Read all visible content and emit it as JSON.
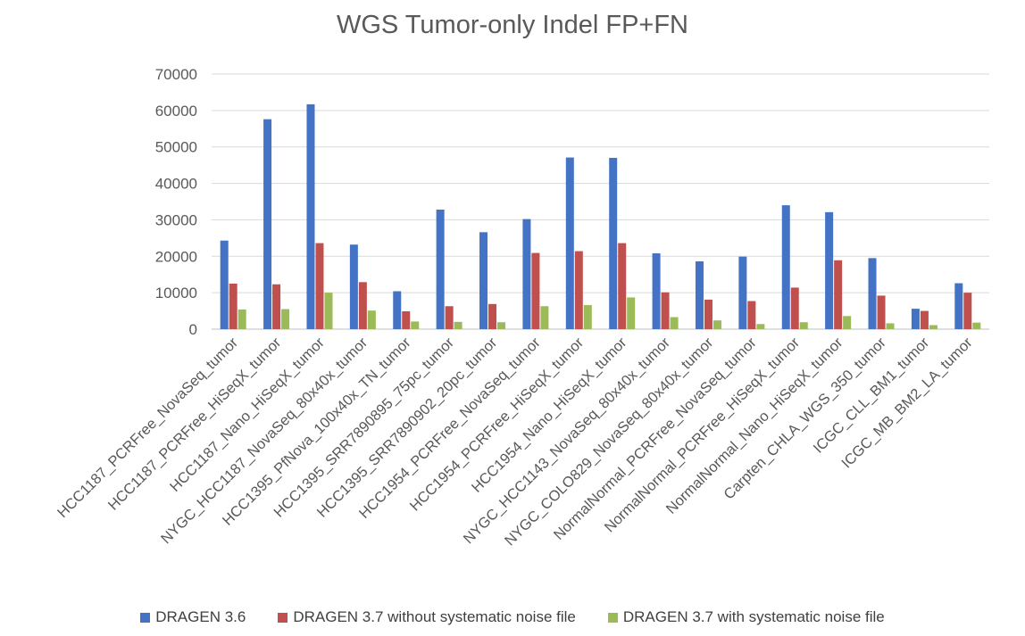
{
  "chart_data": {
    "type": "bar",
    "title": "WGS Tumor-only Indel FP+FN",
    "xlabel": "",
    "ylabel": "",
    "ylim": [
      0,
      70000
    ],
    "yticks": [
      0,
      10000,
      20000,
      30000,
      40000,
      50000,
      60000,
      70000
    ],
    "grid": true,
    "legend_position": "bottom",
    "categories": [
      "HCC1187_PCRFree_NovaSeq_tumor",
      "HCC1187_PCRFree_HiSeqX_tumor",
      "HCC1187_Nano_HiSeqX_tumor",
      "NYGC_HCC1187_NovaSeq_80x40x_tumor",
      "HCC1395_PfNova_100x40x_TN_tumor",
      "HCC1395_SRR7890895_75pc_tumor",
      "HCC1395_SRR7890902_20pc_tumor",
      "HCC1954_PCRFree_NovaSeq_tumor",
      "HCC1954_PCRFree_HiSeqX_tumor",
      "HCC1954_Nano_HiSeqX_tumor",
      "NYGC_HCC1143_NovaSeq_80x40x_tumor",
      "NYGC_COLO829_NovaSeq_80x40x_tumor",
      "NormalNormal_PCRFree_NovaSeq_tumor",
      "NormalNormal_PCRFree_HiSeqX_tumor",
      "NormalNormal_Nano_HiSeqX_tumor",
      "Carpten_CHLA_WGS_350_tumor",
      "ICGC_CLL_BM1_tumor",
      "ICGC_MB_BM2_LA_tumor"
    ],
    "series": [
      {
        "name": "DRAGEN 3.6",
        "color": "#4472C4",
        "values": [
          24300,
          57600,
          61700,
          23200,
          10400,
          32800,
          26600,
          30200,
          47100,
          47000,
          20800,
          18600,
          19900,
          34000,
          32100,
          19500,
          5600,
          12600
        ]
      },
      {
        "name": "DRAGEN 3.7 without systematic noise file",
        "color": "#C0504D",
        "values": [
          12500,
          12300,
          23600,
          12900,
          4900,
          6300,
          6900,
          20900,
          21400,
          23600,
          10100,
          8100,
          7700,
          11400,
          18900,
          9200,
          5000,
          10000
        ]
      },
      {
        "name": "DRAGEN 3.7 with systematic noise file",
        "color": "#9BBB59",
        "values": [
          5400,
          5500,
          10000,
          5100,
          2100,
          2000,
          1900,
          6300,
          6600,
          8700,
          3300,
          2400,
          1400,
          1900,
          3600,
          1600,
          1100,
          1800
        ]
      }
    ]
  }
}
